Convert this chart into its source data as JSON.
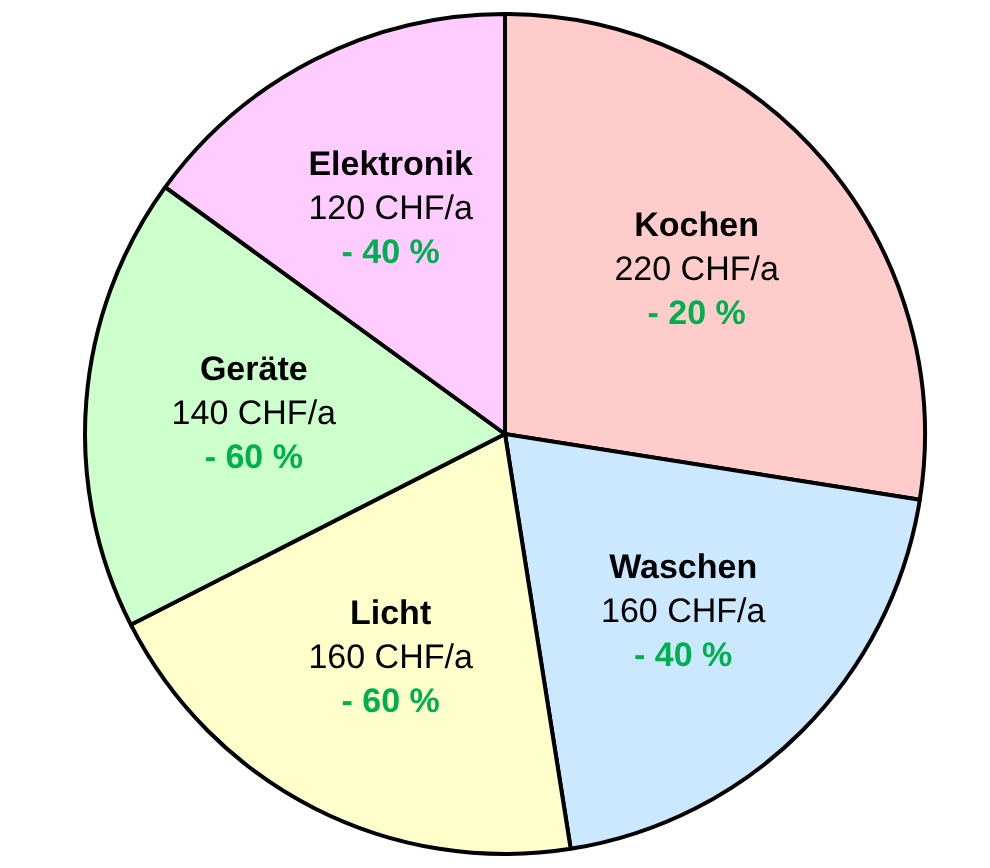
{
  "chart_data": {
    "type": "pie",
    "categories": [
      "Kochen",
      "Waschen",
      "Licht",
      "Geräte",
      "Elektronik"
    ],
    "values": [
      220,
      160,
      160,
      140,
      120
    ],
    "colors": [
      "#ffcccc",
      "#cce8ff",
      "#ffffcc",
      "#ccffcc",
      "#ffccff"
    ],
    "value_labels": [
      "220 CHF/a",
      "160 CHF/a",
      "160 CHF/a",
      "140 CHF/a",
      "120 CHF/a"
    ],
    "annotations": [
      "- 20 %",
      "- 40 %",
      "- 60 %",
      "- 60 %",
      "- 40 %"
    ],
    "legend": false
  }
}
